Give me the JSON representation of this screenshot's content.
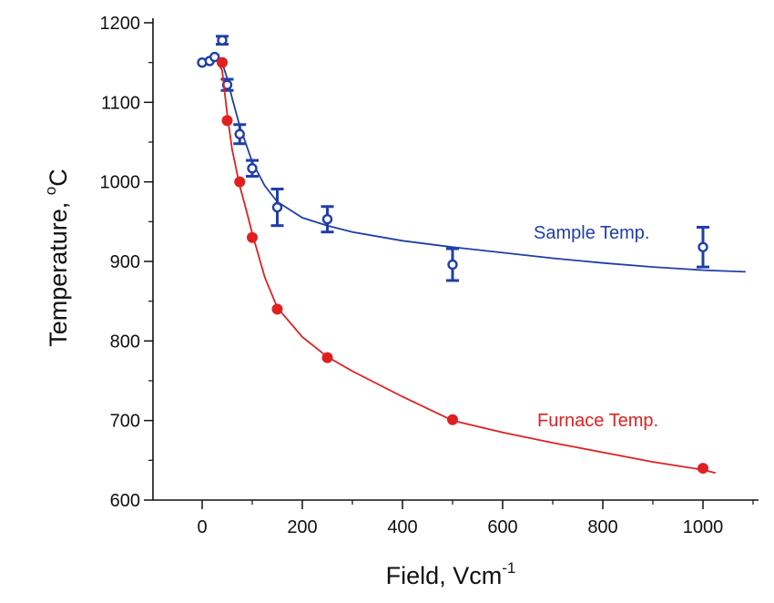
{
  "chart_data": {
    "type": "scatter",
    "xlabel": "Field, Vcm",
    "xlabel_sup": "-1",
    "ylabel": "Temperature, ",
    "ylabel_sup": "o",
    "ylabel_unit": "C",
    "xlim": [
      -100,
      1090
    ],
    "ylim": [
      600,
      1210
    ],
    "x_ticks": [
      0,
      200,
      400,
      600,
      800,
      1000
    ],
    "y_ticks": [
      600,
      700,
      800,
      900,
      1000,
      1100,
      1200
    ],
    "grid": false,
    "series": [
      {
        "name": "Sample Temp.",
        "label": "Sample Temp.",
        "color": "#1f3ea8",
        "marker": "open-circle-with-error-bar",
        "points": [
          {
            "x": 0,
            "y": 1150,
            "err": 0
          },
          {
            "x": 15,
            "y": 1152,
            "err": 0
          },
          {
            "x": 25,
            "y": 1157,
            "err": 0
          },
          {
            "x": 40,
            "y": 1178,
            "err": 5
          },
          {
            "x": 50,
            "y": 1122,
            "err": 7
          },
          {
            "x": 75,
            "y": 1060,
            "err": 12
          },
          {
            "x": 100,
            "y": 1017,
            "err": 10
          },
          {
            "x": 150,
            "y": 968,
            "err": 23
          },
          {
            "x": 250,
            "y": 953,
            "err": 16
          },
          {
            "x": 500,
            "y": 896,
            "err": 20
          },
          {
            "x": 1000,
            "y": 918,
            "err": 25
          }
        ],
        "fit": [
          [
            25,
            1157
          ],
          [
            40,
            1150
          ],
          [
            50,
            1130
          ],
          [
            60,
            1105
          ],
          [
            75,
            1070
          ],
          [
            100,
            1025
          ],
          [
            125,
            995
          ],
          [
            150,
            975
          ],
          [
            200,
            955
          ],
          [
            250,
            945
          ],
          [
            300,
            937
          ],
          [
            400,
            926
          ],
          [
            500,
            918
          ],
          [
            600,
            911
          ],
          [
            700,
            904
          ],
          [
            800,
            898
          ],
          [
            900,
            893
          ],
          [
            1000,
            889
          ],
          [
            1085,
            887
          ]
        ]
      },
      {
        "name": "Furnace Temp.",
        "label": "Furnace Temp.",
        "color": "#e02020",
        "marker": "filled-circle",
        "points": [
          {
            "x": 40,
            "y": 1150
          },
          {
            "x": 50,
            "y": 1077
          },
          {
            "x": 75,
            "y": 1000
          },
          {
            "x": 100,
            "y": 930
          },
          {
            "x": 150,
            "y": 840
          },
          {
            "x": 250,
            "y": 779
          },
          {
            "x": 500,
            "y": 701
          },
          {
            "x": 1000,
            "y": 640
          }
        ],
        "fit": [
          [
            30,
            1152
          ],
          [
            40,
            1140
          ],
          [
            50,
            1085
          ],
          [
            60,
            1040
          ],
          [
            75,
            995
          ],
          [
            90,
            960
          ],
          [
            100,
            935
          ],
          [
            125,
            880
          ],
          [
            150,
            842
          ],
          [
            200,
            805
          ],
          [
            250,
            780
          ],
          [
            300,
            762
          ],
          [
            400,
            730
          ],
          [
            500,
            700
          ],
          [
            600,
            685
          ],
          [
            700,
            672
          ],
          [
            800,
            660
          ],
          [
            900,
            648
          ],
          [
            1000,
            638
          ],
          [
            1025,
            634
          ]
        ]
      }
    ]
  }
}
